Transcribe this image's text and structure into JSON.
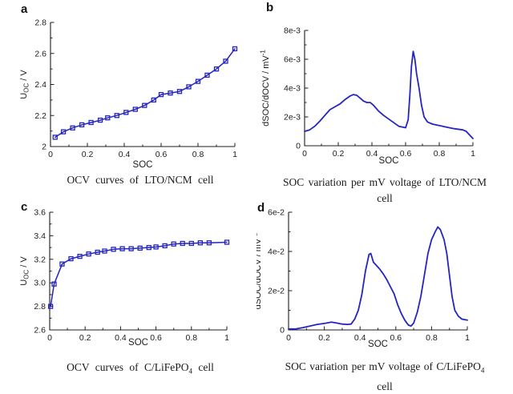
{
  "figure": {
    "background": "#ffffff",
    "line_color": "#2424c0",
    "ink_color": "#1c1c1c"
  },
  "chart_data": [
    {
      "letter": "a",
      "type": "line",
      "marker": "square",
      "xlabel": "SOC",
      "ylabel_segments": [
        {
          "text": "U"
        },
        {
          "text": "OC",
          "sub": true
        },
        {
          "text": " / V"
        }
      ],
      "caption_lines": [
        [
          {
            "text": "OCV curves of LTO/NCM cell"
          }
        ]
      ],
      "xlim": [
        0,
        1
      ],
      "ylim": [
        2,
        2.8
      ],
      "xticks": [
        0,
        0.2,
        0.4,
        0.6,
        0.8,
        1
      ],
      "xtick_labels": [
        "0",
        "0.2",
        "0.4",
        "0.6",
        "0.8",
        "1"
      ],
      "yticks": [
        2,
        2.2,
        2.4,
        2.6,
        2.8
      ],
      "ytick_labels": [
        "2",
        "2.2",
        "2.4",
        "2.6",
        "2.8"
      ],
      "grid": false,
      "x": [
        0.025,
        0.07,
        0.12,
        0.17,
        0.22,
        0.27,
        0.31,
        0.36,
        0.41,
        0.46,
        0.51,
        0.56,
        0.6,
        0.65,
        0.7,
        0.75,
        0.8,
        0.85,
        0.9,
        0.95,
        1.0
      ],
      "y": [
        2.06,
        2.095,
        2.12,
        2.14,
        2.155,
        2.17,
        2.185,
        2.2,
        2.22,
        2.24,
        2.265,
        2.3,
        2.335,
        2.345,
        2.355,
        2.385,
        2.42,
        2.46,
        2.5,
        2.55,
        2.63
      ]
    },
    {
      "letter": "b",
      "type": "line",
      "marker": null,
      "xlabel": "SOC",
      "ylabel_segments": [
        {
          "text": "dSOC/dOCV / mV"
        },
        {
          "text": "-1",
          "sup": true
        }
      ],
      "caption_lines": [
        [
          {
            "text": "SOC variation per mV voltage of LTO/NCM"
          }
        ],
        [
          {
            "text": "cell"
          }
        ]
      ],
      "xlim": [
        0,
        1
      ],
      "ylim": [
        0,
        0.008
      ],
      "xticks": [
        0,
        0.2,
        0.4,
        0.6,
        0.8,
        1
      ],
      "xtick_labels": [
        "0",
        "0.2",
        "0.4",
        "0.6",
        "0.8",
        "1"
      ],
      "yticks": [
        0,
        0.002,
        0.004,
        0.006,
        0.008
      ],
      "ytick_labels": [
        "0",
        "2e-3",
        "4e-3",
        "6e-3",
        "8e-3"
      ],
      "grid": false,
      "x": [
        0,
        0.03,
        0.06,
        0.09,
        0.12,
        0.15,
        0.18,
        0.21,
        0.24,
        0.27,
        0.29,
        0.31,
        0.33,
        0.35,
        0.37,
        0.39,
        0.41,
        0.44,
        0.47,
        0.5,
        0.53,
        0.56,
        0.58,
        0.6,
        0.615,
        0.625,
        0.635,
        0.645,
        0.655,
        0.665,
        0.68,
        0.695,
        0.71,
        0.73,
        0.76,
        0.8,
        0.84,
        0.88,
        0.91,
        0.94,
        0.96,
        0.98,
        1.0
      ],
      "y": [
        0.001,
        0.0011,
        0.00135,
        0.0017,
        0.0021,
        0.0025,
        0.0027,
        0.0029,
        0.0032,
        0.00345,
        0.00355,
        0.0035,
        0.0033,
        0.0031,
        0.003,
        0.003,
        0.0028,
        0.0024,
        0.0021,
        0.00185,
        0.0016,
        0.00135,
        0.0013,
        0.00125,
        0.0018,
        0.0035,
        0.0055,
        0.00655,
        0.006,
        0.005,
        0.004,
        0.0028,
        0.002,
        0.00165,
        0.0015,
        0.0014,
        0.0013,
        0.0012,
        0.00115,
        0.0011,
        0.001,
        0.00075,
        0.0005
      ]
    },
    {
      "letter": "c",
      "type": "line",
      "marker": "square",
      "xlabel": "SOC",
      "ylabel_segments": [
        {
          "text": "U"
        },
        {
          "text": "OC",
          "sub": true
        },
        {
          "text": " / V"
        }
      ],
      "caption_lines": [
        [
          {
            "text": "OCV curves of C/LiFePO"
          },
          {
            "text": "4",
            "sub": true
          },
          {
            "text": " cell"
          }
        ]
      ],
      "xlim": [
        0,
        1
      ],
      "ylim": [
        2.6,
        3.6
      ],
      "xticks": [
        0,
        0.2,
        0.4,
        0.6,
        0.8,
        1
      ],
      "xtick_labels": [
        "0",
        "0.2",
        "0.4",
        "0.6",
        "0.8",
        "1"
      ],
      "yticks": [
        2.6,
        2.8,
        3.0,
        3.2,
        3.4,
        3.6
      ],
      "ytick_labels": [
        "2.6",
        "2.8",
        "3.0",
        "3.2",
        "3.4",
        "3.6"
      ],
      "grid": false,
      "x": [
        0.005,
        0.025,
        0.07,
        0.12,
        0.17,
        0.22,
        0.27,
        0.31,
        0.36,
        0.41,
        0.46,
        0.51,
        0.56,
        0.6,
        0.65,
        0.7,
        0.75,
        0.8,
        0.85,
        0.9,
        1.0
      ],
      "y": [
        2.8,
        2.99,
        3.16,
        3.205,
        3.225,
        3.245,
        3.26,
        3.27,
        3.285,
        3.29,
        3.29,
        3.295,
        3.3,
        3.305,
        3.315,
        3.33,
        3.335,
        3.335,
        3.34,
        3.34,
        3.345
      ]
    },
    {
      "letter": "d",
      "type": "line",
      "marker": null,
      "xlabel": "SOC",
      "ylabel_segments": [
        {
          "text": "dSOC/dOCV / mV"
        },
        {
          "text": "-1",
          "sup": true
        }
      ],
      "caption_lines": [
        [
          {
            "text": "SOC variation per mV voltage of C/LiFePO"
          },
          {
            "text": "4",
            "sub": true
          }
        ],
        [
          {
            "text": "cell"
          }
        ]
      ],
      "xlim": [
        0,
        1
      ],
      "ylim": [
        0,
        0.06
      ],
      "xticks": [
        0,
        0.2,
        0.4,
        0.6,
        0.8,
        1
      ],
      "xtick_labels": [
        "0",
        "0.2",
        "0.4",
        "0.6",
        "0.8",
        "1"
      ],
      "yticks": [
        0,
        0.02,
        0.04,
        0.06
      ],
      "ytick_labels": [
        "0",
        "2e-2",
        "4e-2",
        "6e-2"
      ],
      "grid": false,
      "x": [
        0,
        0.04,
        0.08,
        0.12,
        0.16,
        0.2,
        0.24,
        0.27,
        0.3,
        0.33,
        0.35,
        0.37,
        0.39,
        0.41,
        0.43,
        0.45,
        0.46,
        0.475,
        0.49,
        0.51,
        0.53,
        0.55,
        0.57,
        0.59,
        0.61,
        0.63,
        0.65,
        0.67,
        0.685,
        0.7,
        0.72,
        0.74,
        0.76,
        0.78,
        0.8,
        0.82,
        0.835,
        0.85,
        0.87,
        0.885,
        0.9,
        0.915,
        0.93,
        0.95,
        0.97,
        1.0
      ],
      "y": [
        0.0005,
        0.0005,
        0.0012,
        0.002,
        0.0028,
        0.0033,
        0.004,
        0.0035,
        0.003,
        0.0028,
        0.003,
        0.0055,
        0.01,
        0.018,
        0.03,
        0.0385,
        0.039,
        0.0345,
        0.033,
        0.031,
        0.0285,
        0.0255,
        0.022,
        0.0185,
        0.013,
        0.0085,
        0.005,
        0.0025,
        0.002,
        0.0035,
        0.009,
        0.017,
        0.028,
        0.039,
        0.046,
        0.05,
        0.0525,
        0.051,
        0.046,
        0.039,
        0.028,
        0.017,
        0.01,
        0.007,
        0.0055,
        0.005
      ]
    }
  ]
}
